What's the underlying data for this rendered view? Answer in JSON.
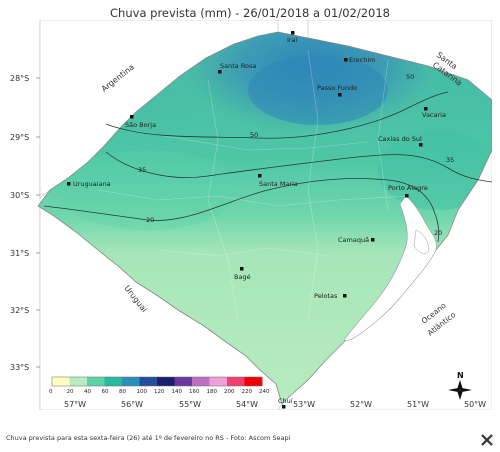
{
  "title": "Chuva prevista (mm) - 26/01/2018 a 01/02/2018",
  "caption": "Chuva prevista para esta sexta-feira (26) até 1º de fevereiro no RS - Foto: Ascom Seapi",
  "latitudes": [
    "28°S",
    "29°S",
    "30°S",
    "31°S",
    "32°S",
    "33°S"
  ],
  "longitudes": [
    "57°W",
    "56°W",
    "55°W",
    "54°W",
    "53°W",
    "52°W",
    "51°W",
    "50°W"
  ],
  "regions": {
    "argentina": "Argentina",
    "santa_catarina": [
      "Santa",
      "Catarina"
    ],
    "uruguai": "Uruguai",
    "oceano": [
      "Oceano",
      "Atlântico"
    ]
  },
  "cities": [
    {
      "name": "Iraí"
    },
    {
      "name": "Erechim"
    },
    {
      "name": "Santa Rosa"
    },
    {
      "name": "Passo Fundo"
    },
    {
      "name": "Vacaria"
    },
    {
      "name": "São Borja"
    },
    {
      "name": "Caxias do Sul"
    },
    {
      "name": "Uruguaiana"
    },
    {
      "name": "Santa Maria"
    },
    {
      "name": "Porto Alegre"
    },
    {
      "name": "Camaquã"
    },
    {
      "name": "Bagé"
    },
    {
      "name": "Pelotas"
    },
    {
      "name": "Chuí"
    }
  ],
  "isolines": [
    "50",
    "50",
    "35",
    "35",
    "20",
    "20"
  ],
  "legend": {
    "ticks": [
      "0",
      "20",
      "40",
      "60",
      "80",
      "100",
      "120",
      "140",
      "160",
      "180",
      "200",
      "220",
      "240"
    ],
    "colors": [
      "#ffffc0",
      "#b8ecc0",
      "#5fd3a8",
      "#2bb89e",
      "#2a8fb8",
      "#234f9e",
      "#1b1f6e",
      "#6a3a9e",
      "#c070c0",
      "#f0a0d8",
      "#f04070",
      "#f00000"
    ]
  },
  "compass": "N",
  "close_icon": "close-icon"
}
